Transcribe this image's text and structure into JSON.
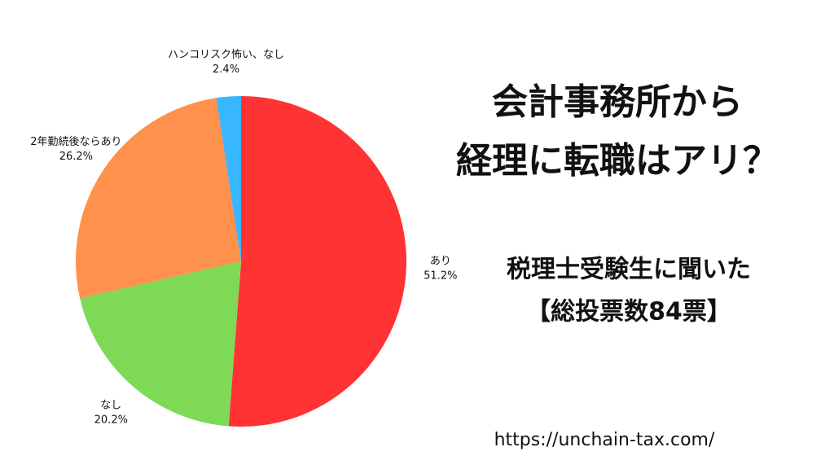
{
  "chart_data": {
    "type": "pie",
    "title": [
      "会計事務所から",
      "経理に転職はアリ？"
    ],
    "subtitle": [
      "税理士受験生に聞いた",
      "【総投票数84票】"
    ],
    "source": "https://unchain-tax.com/",
    "categories": [
      "あり",
      "なし",
      "2年勤続後ならあり",
      "ハンコリスク怖い、なし"
    ],
    "values": [
      51.2,
      20.2,
      26.2,
      2.4
    ],
    "value_labels": [
      "51.2%",
      "20.2%",
      "26.2%",
      "2.4%"
    ],
    "colors": [
      "#ff3333",
      "#7ed957",
      "#ff914d",
      "#38b6ff"
    ]
  }
}
